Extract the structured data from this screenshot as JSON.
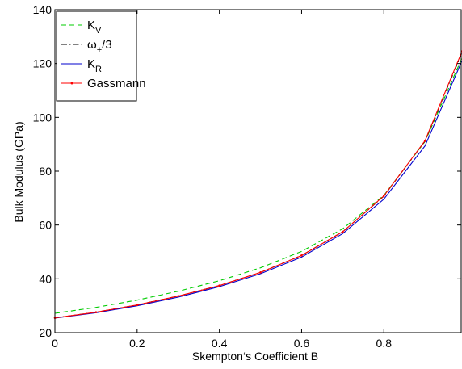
{
  "chart_data": {
    "type": "line",
    "title": "",
    "xlabel": "Skempton‘s Coefficient B",
    "ylabel": "Bulk Modulus (GPa)",
    "xlim": [
      0,
      0.99
    ],
    "ylim": [
      20,
      140
    ],
    "x_ticks": [
      0,
      0.2,
      0.4,
      0.6,
      0.8
    ],
    "y_ticks": [
      20,
      40,
      60,
      80,
      100,
      120,
      140
    ],
    "x_tick_labels": [
      "0",
      "0.2",
      "0.4",
      "0.6",
      "0.8"
    ],
    "y_tick_labels": [
      "20",
      "40",
      "60",
      "80",
      "100",
      "120",
      "140"
    ],
    "grid": false,
    "legend_position": "top-left",
    "x": [
      0,
      0.1,
      0.2,
      0.3,
      0.4,
      0.5,
      0.6,
      0.7,
      0.8,
      0.9,
      0.99
    ],
    "series": [
      {
        "name": "K_V",
        "legend_main": "K",
        "legend_sub": "V",
        "legend_suffix": "",
        "color": "#00cc00",
        "dash": "dashed",
        "values": [
          27.2,
          29.4,
          32.1,
          35.4,
          39.3,
          44.1,
          50.2,
          58.6,
          71.0,
          91.0,
          122.0
        ]
      },
      {
        "name": "ω_+/3",
        "legend_main": "ω",
        "legend_sub": "+",
        "legend_suffix": "/3",
        "color": "#000000",
        "dash": "dashdot",
        "values": [
          25.5,
          27.6,
          30.3,
          33.6,
          37.5,
          42.4,
          48.7,
          57.5,
          70.7,
          91.2,
          124.0
        ]
      },
      {
        "name": "K_R",
        "legend_main": "K",
        "legend_sub": "R",
        "legend_suffix": "",
        "color": "#0000cc",
        "dash": "solid",
        "values": [
          25.4,
          27.4,
          30.0,
          33.2,
          37.1,
          41.9,
          48.1,
          56.8,
          69.6,
          89.4,
          121.0
        ]
      },
      {
        "name": "Gassmann",
        "legend_main": "Gassmann",
        "legend_sub": "",
        "legend_suffix": "",
        "color": "#ff0000",
        "dash": "solid-marker",
        "values": [
          25.5,
          27.6,
          30.3,
          33.6,
          37.5,
          42.4,
          48.7,
          57.5,
          70.8,
          91.3,
          124.5
        ]
      }
    ]
  }
}
